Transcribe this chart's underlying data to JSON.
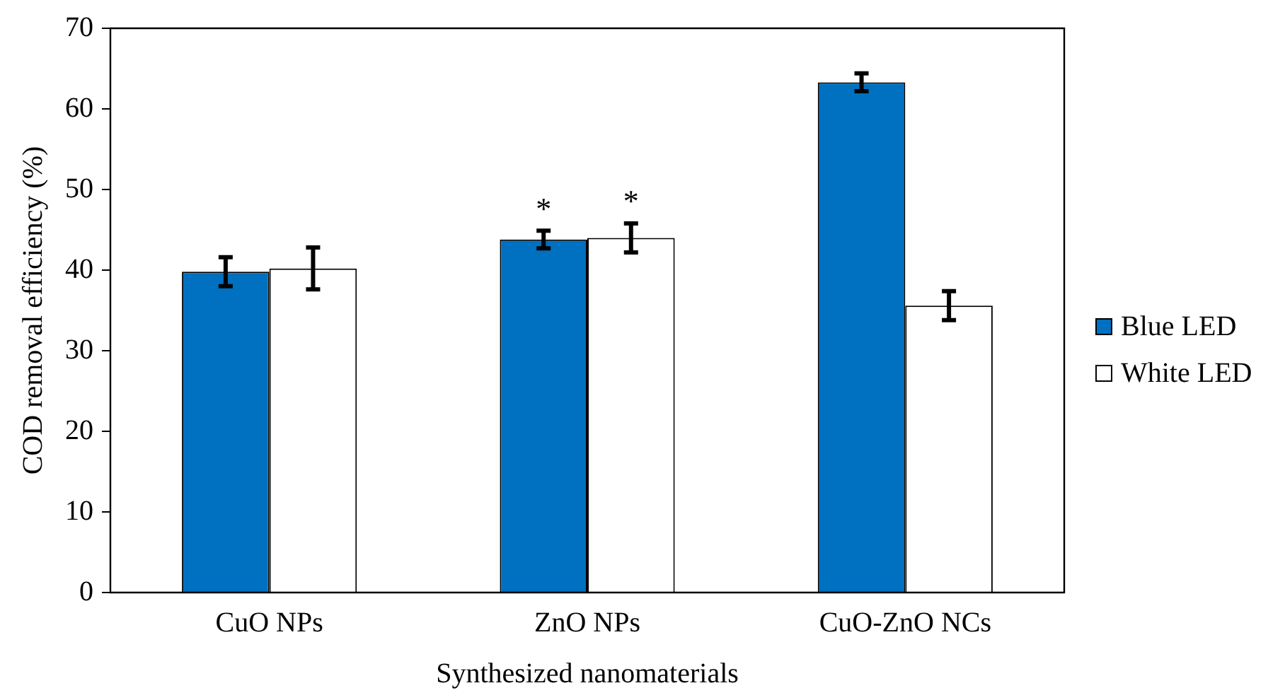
{
  "chart_data": {
    "type": "bar",
    "xlabel": "Synthesized nanomaterials",
    "ylabel": "COD removal efficiency (%)",
    "categories": [
      "CuO NPs",
      "ZnO NPs",
      "CuO-ZnO NCs"
    ],
    "series": [
      {
        "name": "Blue LED",
        "color": "#0070c0",
        "values": [
          39.8,
          43.8,
          63.3
        ],
        "errors": [
          1.8,
          1.1,
          1.1
        ]
      },
      {
        "name": "White LED",
        "color": "#ffffff",
        "values": [
          40.2,
          44.0,
          35.6
        ],
        "errors": [
          2.6,
          1.8,
          1.8
        ]
      }
    ],
    "ylim": [
      0,
      70
    ],
    "yticks": [
      0,
      10,
      20,
      30,
      40,
      50,
      60,
      70
    ],
    "grid": false,
    "legend": "right",
    "annotations": [
      "*",
      "*"
    ]
  }
}
